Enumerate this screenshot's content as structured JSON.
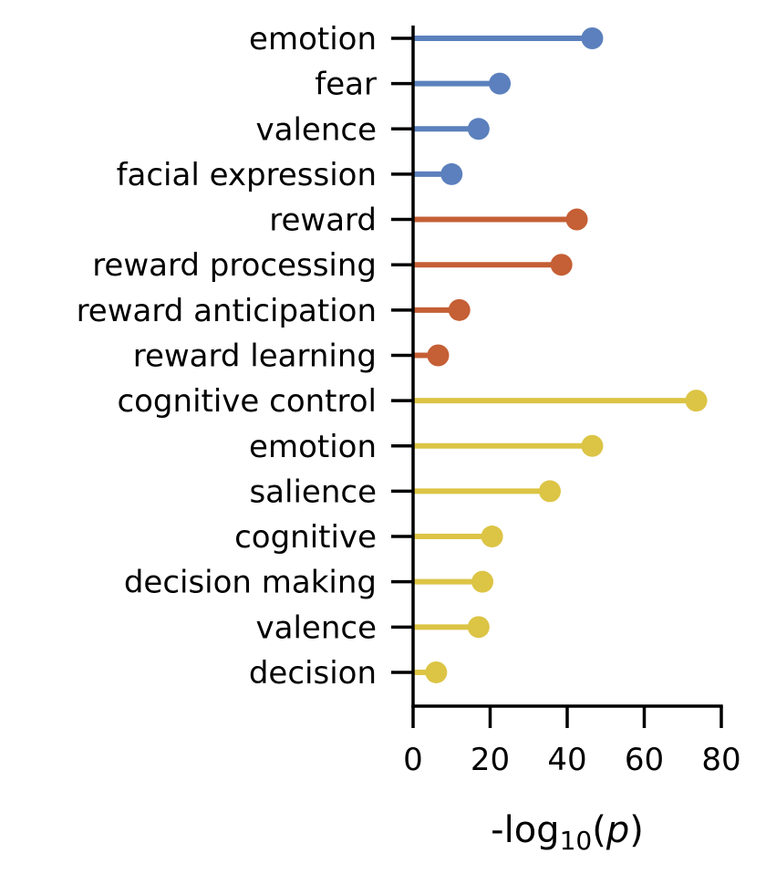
{
  "chart_data": {
    "type": "lollipop",
    "orientation": "horizontal",
    "categories": [
      "emotion",
      "fear",
      "valence",
      "facial expression",
      "reward",
      "reward processing",
      "reward anticipation",
      "reward learning",
      "cognitive control",
      "emotion",
      "salience",
      "cognitive",
      "decision making",
      "valence",
      "decision"
    ],
    "values": [
      46.5,
      22.5,
      17,
      10,
      42.5,
      38.5,
      12,
      6.5,
      73.5,
      46.5,
      35.5,
      20.5,
      18,
      17,
      6
    ],
    "groups": [
      0,
      0,
      0,
      0,
      1,
      1,
      1,
      1,
      2,
      2,
      2,
      2,
      2,
      2,
      2
    ],
    "group_colors": [
      "#5b80bd",
      "#c55f35",
      "#dcc445"
    ],
    "xlim": [
      0,
      80
    ],
    "xticks": [
      0,
      20,
      40,
      60,
      80
    ],
    "xlabel_prefix": "-log",
    "xlabel_subscript": "10",
    "xlabel_var": "p",
    "grid": false,
    "legend": false
  }
}
